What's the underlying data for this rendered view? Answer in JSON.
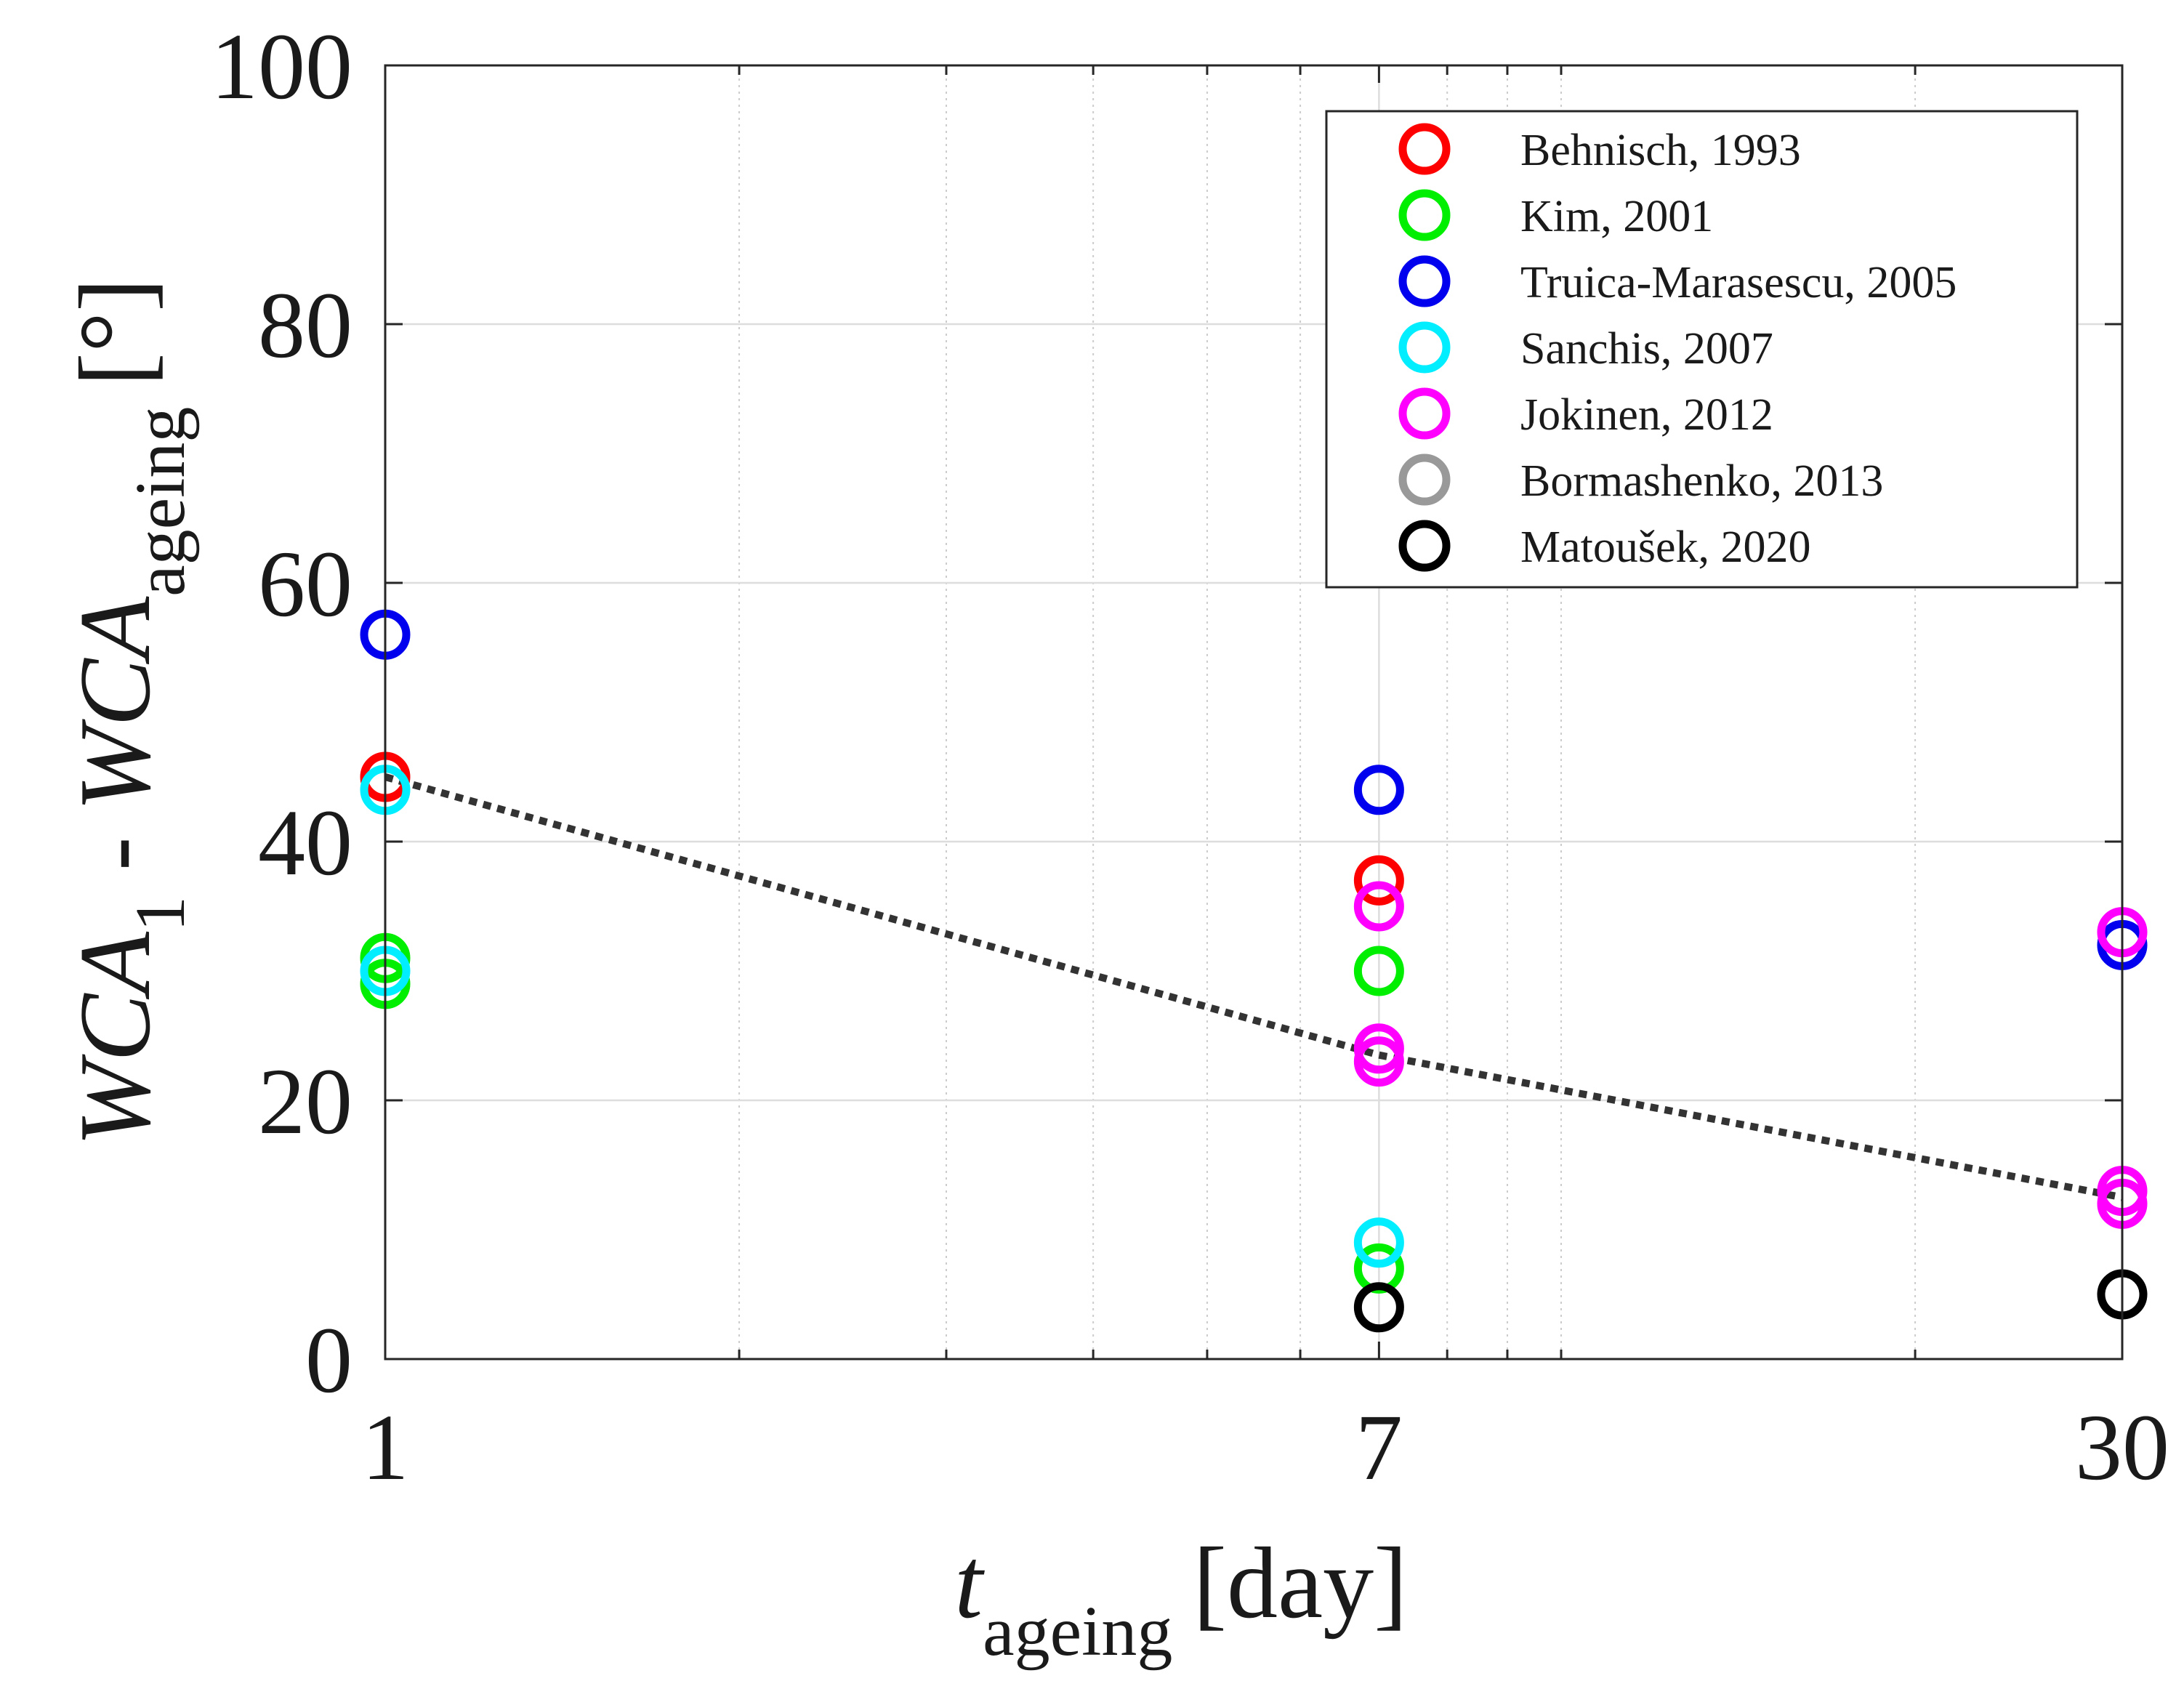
{
  "chart_data": {
    "type": "scatter",
    "xscale": "log",
    "xlim": [
      1,
      30
    ],
    "ylim": [
      0,
      100
    ],
    "x_ticks": [
      1,
      7,
      30
    ],
    "x_tick_labels": [
      "1",
      "7",
      "30"
    ],
    "y_ticks": [
      0,
      20,
      40,
      60,
      80,
      100
    ],
    "y_tick_labels": [
      "0",
      "20",
      "40",
      "60",
      "80",
      "100"
    ],
    "grid": true,
    "legend_position": "top-right",
    "xlabel": {
      "main": "t",
      "sub": "ageing",
      "unit": "[day]"
    },
    "ylabel": {
      "p1": "WCA",
      "p1_sub": "1",
      "sep": " - ",
      "p2": "WCA",
      "p2_sub": "ageing",
      "unit": "[°]"
    },
    "series": [
      {
        "name": "Behnisch, 1993",
        "color": "#ff0000",
        "x": [
          1,
          7
        ],
        "y": [
          45,
          37
        ]
      },
      {
        "name": "Kim, 2001",
        "color": "#00ee00",
        "x": [
          1,
          1,
          7,
          7
        ],
        "y": [
          29,
          31,
          30,
          7
        ]
      },
      {
        "name": "Truica-Marasescu, 2005",
        "color": "#0000ee",
        "x": [
          1,
          7,
          30
        ],
        "y": [
          56,
          44,
          32
        ]
      },
      {
        "name": "Sanchis, 2007",
        "color": "#00eeff",
        "x": [
          1,
          1,
          7
        ],
        "y": [
          44,
          30,
          9
        ]
      },
      {
        "name": "Jokinen, 2012",
        "color": "#ff00ff",
        "x": [
          7,
          7,
          7,
          30,
          30,
          30
        ],
        "y": [
          35,
          24,
          23,
          33,
          13,
          12
        ]
      },
      {
        "name": "Bormashenko, 2013",
        "color": "#999999",
        "x": [],
        "y": []
      },
      {
        "name": "Matoušek, 2020",
        "color": "#000000",
        "x": [
          7,
          30
        ],
        "y": [
          4,
          5
        ]
      }
    ],
    "trend": {
      "style": "dotted",
      "color": "#333333",
      "x": [
        1,
        7,
        30
      ],
      "y": [
        45,
        23.5,
        12.5
      ]
    }
  }
}
